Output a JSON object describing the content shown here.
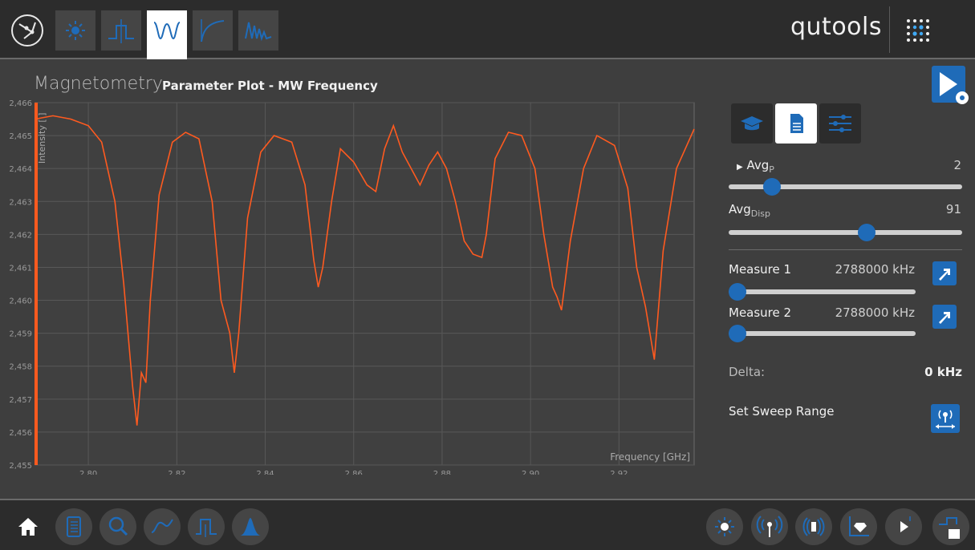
{
  "header": {
    "brand": "qutools",
    "mode_tabs": [
      {
        "icon": "sun-icon",
        "active": false
      },
      {
        "icon": "pulse-icon",
        "active": false
      },
      {
        "icon": "double-dip-icon",
        "active": true
      },
      {
        "icon": "decay-curve-icon",
        "active": false
      },
      {
        "icon": "oscillation-icon",
        "active": false
      }
    ],
    "grid_icon": "dot-grid-icon"
  },
  "main": {
    "title": "Magnetometry",
    "subtitle": "Parameter Plot - MW Frequency"
  },
  "controls": {
    "avg_p_label": "Avg",
    "avg_p_sub": "P",
    "avg_p_value": "2",
    "avg_p_level": 0.16,
    "avg_disp_label": "Avg",
    "avg_disp_sub": "Disp",
    "avg_disp_value": "91",
    "avg_disp_level": 0.6,
    "measure1_label": "Measure 1",
    "measure1_value": "2788000 kHz",
    "measure1_level": 0.0,
    "measure2_label": "Measure 2",
    "measure2_value": "2788000 kHz",
    "measure2_level": 0.0,
    "delta_label": "Delta:",
    "delta_value": "0 kHz",
    "sweep_label": "Set Sweep Range"
  },
  "colors": {
    "accent": "#1f6bb8",
    "trace": "#ff5a1f",
    "background": "#3e3e3e",
    "bar": "#2c2c2c"
  },
  "bottom_left_icons": [
    "home-icon",
    "notebook-icon",
    "search-icon",
    "wave-icon",
    "pulse-icon",
    "peak-icon"
  ],
  "bottom_right_icons": [
    "sun-icon",
    "antenna-icon",
    "coil-icon",
    "diamond-axis-icon",
    "play-icon",
    "pulse-block-icon"
  ],
  "chart_data": {
    "type": "line",
    "xlabel": "Frequency [GHz]",
    "ylabel": "Intensity [ ]",
    "xlim": [
      2.788,
      2.937
    ],
    "ylim": [
      2.455,
      2.466
    ],
    "x_ticks": [
      "2.80",
      "2.82",
      "2.84",
      "2.86",
      "2.88",
      "2.90",
      "2.92"
    ],
    "y_ticks": [
      "2,455",
      "2,456",
      "2,457",
      "2,458",
      "2,459",
      "2,460",
      "2,461",
      "2,462",
      "2,463",
      "2,464",
      "2,465",
      "2,466"
    ],
    "series": [
      {
        "x": [
          2.788,
          2.792,
          2.796,
          2.8,
          2.803,
          2.806,
          2.808,
          2.81,
          2.811,
          2.812,
          2.813,
          2.814,
          2.816,
          2.819,
          2.822,
          2.825,
          2.828,
          2.83,
          2.832,
          2.833,
          2.834,
          2.836,
          2.839,
          2.842,
          2.846,
          2.849,
          2.851,
          2.852,
          2.853,
          2.855,
          2.857,
          2.86,
          2.863,
          2.865,
          2.867,
          2.869,
          2.871,
          2.873,
          2.875,
          2.877,
          2.879,
          2.881,
          2.883,
          2.885,
          2.887,
          2.889,
          2.89,
          2.892,
          2.895,
          2.898,
          2.901,
          2.903,
          2.905,
          2.906,
          2.907,
          2.909,
          2.912,
          2.915,
          2.919,
          2.922,
          2.924,
          2.926,
          2.927,
          2.928,
          2.93,
          2.933,
          2.937
        ],
        "y": [
          2.4655,
          2.4656,
          2.4655,
          2.4653,
          2.4648,
          2.463,
          2.4605,
          2.4574,
          2.4562,
          2.4578,
          2.4575,
          2.46,
          2.4632,
          2.4648,
          2.4651,
          2.4649,
          2.463,
          2.46,
          2.459,
          2.4578,
          2.459,
          2.4625,
          2.4645,
          2.465,
          2.4648,
          2.4635,
          2.4612,
          2.4604,
          2.461,
          2.463,
          2.4646,
          2.4642,
          2.4635,
          2.4633,
          2.4646,
          2.4653,
          2.4645,
          2.464,
          2.4635,
          2.4641,
          2.4645,
          2.464,
          2.463,
          2.4618,
          2.4614,
          2.4613,
          2.462,
          2.4643,
          2.4651,
          2.465,
          2.464,
          2.462,
          2.4604,
          2.4601,
          2.4597,
          2.4618,
          2.464,
          2.465,
          2.4647,
          2.4634,
          2.461,
          2.4598,
          2.459,
          2.4582,
          2.4615,
          2.464,
          2.4652
        ]
      }
    ],
    "grid": true
  }
}
